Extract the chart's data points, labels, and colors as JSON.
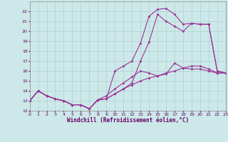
{
  "xlabel": "Windchill (Refroidissement éolien,°C)",
  "xlim": [
    0,
    23
  ],
  "ylim": [
    12,
    23
  ],
  "xticks": [
    0,
    1,
    2,
    3,
    4,
    5,
    6,
    7,
    8,
    9,
    10,
    11,
    12,
    13,
    14,
    15,
    16,
    17,
    18,
    19,
    20,
    21,
    22,
    23
  ],
  "yticks": [
    12,
    13,
    14,
    15,
    16,
    17,
    18,
    19,
    20,
    21,
    22
  ],
  "bg_color": "#cce8e8",
  "grid_color": "#aacaca",
  "line_color": "#993399",
  "line1_x": [
    0,
    1,
    2,
    3,
    4,
    5,
    6,
    7,
    8,
    9,
    10,
    11,
    12,
    13,
    14,
    15,
    16,
    17,
    18,
    19,
    20,
    21,
    22,
    23
  ],
  "line1_y": [
    13.0,
    14.0,
    13.5,
    13.2,
    13.0,
    12.6,
    12.6,
    12.2,
    13.1,
    13.2,
    16.0,
    16.5,
    17.0,
    18.8,
    21.5,
    22.2,
    22.3,
    21.7,
    20.7,
    20.8,
    20.7,
    20.7,
    16.0,
    15.8
  ],
  "line2_x": [
    0,
    1,
    2,
    3,
    4,
    5,
    6,
    7,
    8,
    9,
    10,
    11,
    12,
    13,
    14,
    15,
    16,
    17,
    18,
    19,
    20,
    21,
    22,
    23
  ],
  "line2_y": [
    13.0,
    14.0,
    13.5,
    13.2,
    13.0,
    12.6,
    12.6,
    12.2,
    13.1,
    13.2,
    13.7,
    14.2,
    14.8,
    17.0,
    18.9,
    21.7,
    21.0,
    20.5,
    20.0,
    20.8,
    20.7,
    20.7,
    16.0,
    15.8
  ],
  "line3_x": [
    0,
    1,
    2,
    3,
    4,
    5,
    6,
    7,
    8,
    9,
    10,
    11,
    12,
    13,
    14,
    15,
    16,
    17,
    18,
    19,
    20,
    21,
    22,
    23
  ],
  "line3_y": [
    13.0,
    14.0,
    13.5,
    13.2,
    13.0,
    12.6,
    12.6,
    12.2,
    13.1,
    13.5,
    14.2,
    14.8,
    15.4,
    16.0,
    15.8,
    15.5,
    15.7,
    16.8,
    16.3,
    16.2,
    16.2,
    16.0,
    15.8,
    15.8
  ],
  "line4_x": [
    0,
    1,
    2,
    3,
    4,
    5,
    6,
    7,
    8,
    9,
    10,
    11,
    12,
    13,
    14,
    15,
    16,
    17,
    18,
    19,
    20,
    21,
    22,
    23
  ],
  "line4_y": [
    13.0,
    14.0,
    13.5,
    13.2,
    13.0,
    12.6,
    12.6,
    12.2,
    13.1,
    13.2,
    13.7,
    14.2,
    14.6,
    15.0,
    15.3,
    15.5,
    15.8,
    16.0,
    16.3,
    16.5,
    16.5,
    16.2,
    15.8,
    15.8
  ]
}
